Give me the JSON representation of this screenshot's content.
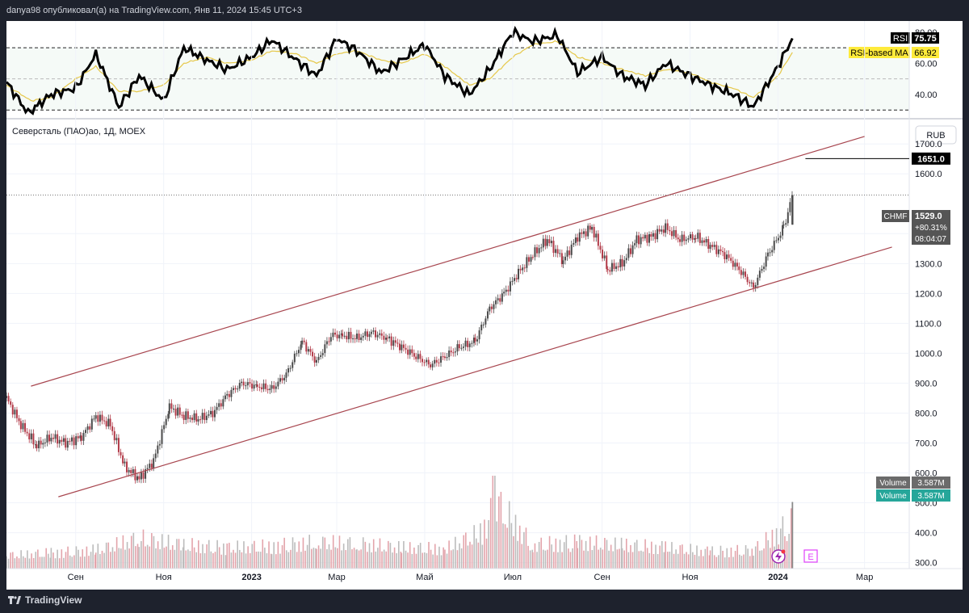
{
  "header": {
    "caption": "danya98 опубликовал(а) на TradingView.com, Янв 11, 2024 15:45 UTC+3"
  },
  "footer": {
    "brand": "TradingView"
  },
  "main_pane": {
    "title": "Северсталь (ПАО)ао, 1Д, MOEX",
    "currency": "RUB",
    "price_badge": {
      "symbol": "CHMF",
      "price": "1529.0",
      "change": "+80.31%",
      "countdown": "08:04:07"
    },
    "target_badge": "1651.0",
    "volume_badge_1": {
      "label": "Volume",
      "value": "3.587M"
    },
    "volume_badge_2": {
      "label": "Volume",
      "value": "3.587M"
    },
    "e_marker": "E"
  },
  "rsi_pane": {
    "rsi_label": "RSI",
    "rsi_value": "75.75",
    "ma_label": "RSI-based MA",
    "ma_value": "66.92"
  },
  "colors": {
    "up": "#4a4a4a",
    "down": "#b23a48",
    "channel": "#a8464f",
    "rsi": "#000000",
    "rsi_ma": "#e6c84a",
    "ma_badge": "#ffeb3b"
  },
  "chart_data": [
    {
      "type": "line",
      "name": "RSI pane",
      "yticks": [
        "80.00",
        "60.00",
        "40.00"
      ],
      "ylim": [
        26,
        83
      ],
      "levels": [
        70,
        50,
        30
      ],
      "series": [
        {
          "name": "RSI",
          "x": [
            "2022-07-15",
            "2022-07-30",
            "2022-08-15",
            "2022-09-01",
            "2022-09-15",
            "2022-10-01",
            "2022-10-15",
            "2022-11-01",
            "2022-11-15",
            "2022-12-01",
            "2022-12-15",
            "2023-01-01",
            "2023-01-15",
            "2023-02-01",
            "2023-02-15",
            "2023-03-01",
            "2023-03-15",
            "2023-04-01",
            "2023-04-15",
            "2023-05-01",
            "2023-05-15",
            "2023-06-01",
            "2023-06-15",
            "2023-07-01",
            "2023-07-15",
            "2023-08-01",
            "2023-08-15",
            "2023-09-01",
            "2023-09-15",
            "2023-10-01",
            "2023-10-15",
            "2023-11-01",
            "2023-11-15",
            "2023-12-01",
            "2023-12-15",
            "2024-01-01",
            "2024-01-11"
          ],
          "values": [
            48,
            28,
            40,
            44,
            66,
            32,
            52,
            36,
            70,
            62,
            56,
            64,
            75,
            62,
            52,
            76,
            68,
            54,
            62,
            72,
            52,
            40,
            56,
            80,
            74,
            78,
            54,
            64,
            52,
            46,
            60,
            52,
            46,
            40,
            32,
            58,
            76
          ]
        },
        {
          "name": "RSI-based MA",
          "x": [
            "2022-07-15",
            "2022-08-01",
            "2022-08-15",
            "2022-09-01",
            "2022-09-15",
            "2022-10-01",
            "2022-10-15",
            "2022-11-01",
            "2022-11-15",
            "2022-12-01",
            "2022-12-15",
            "2023-01-01",
            "2023-01-15",
            "2023-02-01",
            "2023-02-15",
            "2023-03-01",
            "2023-03-15",
            "2023-04-01",
            "2023-04-15",
            "2023-05-01",
            "2023-05-15",
            "2023-06-01",
            "2023-06-15",
            "2023-07-01",
            "2023-07-15",
            "2023-08-01",
            "2023-08-15",
            "2023-09-01",
            "2023-09-15",
            "2023-10-01",
            "2023-10-15",
            "2023-11-01",
            "2023-11-15",
            "2023-12-01",
            "2023-12-15",
            "2024-01-01",
            "2024-01-11"
          ],
          "values": [
            46,
            36,
            38,
            50,
            58,
            42,
            42,
            46,
            60,
            64,
            60,
            62,
            68,
            66,
            60,
            66,
            68,
            62,
            60,
            66,
            58,
            46,
            50,
            64,
            72,
            74,
            64,
            60,
            56,
            52,
            56,
            54,
            48,
            44,
            38,
            52,
            67
          ]
        }
      ]
    },
    {
      "type": "candlestick",
      "name": "price pane",
      "yticks": [
        "1700.0",
        "1600.0",
        "1400.0",
        "1300.0",
        "1200.0",
        "1100.0",
        "1000.0",
        "900.0",
        "800.0",
        "700.0",
        "600.0",
        "500.0",
        "400.0",
        "300.0"
      ],
      "ylim": [
        280,
        1760
      ],
      "xticks": [
        "Сен",
        "Ноя",
        "2023",
        "Мар",
        "Май",
        "Июл",
        "Сен",
        "Ноя",
        "2024",
        "Мар"
      ],
      "xtick_dates": [
        "2022-09-01",
        "2022-11-01",
        "2023-01-01",
        "2023-03-01",
        "2023-05-01",
        "2023-07-01",
        "2023-09-01",
        "2023-11-01",
        "2024-01-01",
        "2024-03-01"
      ],
      "xlim": [
        "2022-07-15",
        "2024-04-01"
      ],
      "series": [
        {
          "name": "close",
          "x": [
            "2022-07-15",
            "2022-07-25",
            "2022-08-05",
            "2022-08-15",
            "2022-08-25",
            "2022-09-05",
            "2022-09-15",
            "2022-09-25",
            "2022-10-05",
            "2022-10-15",
            "2022-10-25",
            "2022-11-05",
            "2022-11-15",
            "2022-11-25",
            "2022-12-05",
            "2022-12-15",
            "2022-12-25",
            "2023-01-05",
            "2023-01-15",
            "2023-01-25",
            "2023-02-05",
            "2023-02-15",
            "2023-02-25",
            "2023-03-05",
            "2023-03-15",
            "2023-03-25",
            "2023-04-05",
            "2023-04-15",
            "2023-04-25",
            "2023-05-05",
            "2023-05-15",
            "2023-05-25",
            "2023-06-05",
            "2023-06-15",
            "2023-06-25",
            "2023-07-05",
            "2023-07-15",
            "2023-07-25",
            "2023-08-05",
            "2023-08-15",
            "2023-08-25",
            "2023-09-05",
            "2023-09-15",
            "2023-09-25",
            "2023-10-05",
            "2023-10-15",
            "2023-10-25",
            "2023-11-05",
            "2023-11-15",
            "2023-11-25",
            "2023-12-05",
            "2023-12-15",
            "2023-12-25",
            "2024-01-05",
            "2024-01-11"
          ],
          "values": [
            850,
            760,
            690,
            720,
            700,
            720,
            790,
            760,
            620,
            580,
            640,
            820,
            790,
            780,
            800,
            860,
            900,
            890,
            880,
            930,
            1040,
            970,
            1060,
            1060,
            1050,
            1070,
            1050,
            1020,
            990,
            960,
            990,
            1020,
            1040,
            1150,
            1200,
            1270,
            1330,
            1380,
            1310,
            1390,
            1420,
            1280,
            1300,
            1380,
            1390,
            1420,
            1380,
            1390,
            1360,
            1330,
            1280,
            1220,
            1330,
            1420,
            1529
          ]
        },
        {
          "name": "Volume",
          "x": [
            "2022-07-15",
            "2022-08-15",
            "2022-09-15",
            "2022-10-15",
            "2022-11-15",
            "2022-12-15",
            "2023-01-15",
            "2023-02-15",
            "2023-03-15",
            "2023-04-15",
            "2023-05-15",
            "2023-06-10",
            "2023-06-20",
            "2023-07-15",
            "2023-08-15",
            "2023-09-15",
            "2023-10-15",
            "2023-11-15",
            "2023-12-15",
            "2024-01-11"
          ],
          "values": [
            1.0,
            1.2,
            1.4,
            2.3,
            1.8,
            1.6,
            1.7,
            2.0,
            1.9,
            1.6,
            1.5,
            2.8,
            5.0,
            1.8,
            2.0,
            1.8,
            1.6,
            1.3,
            1.4,
            3.587
          ]
        }
      ],
      "channel": {
        "upper": [
          [
            "2022-08-01",
            890
          ],
          [
            "2024-03-01",
            1725
          ]
        ],
        "lower": [
          [
            "2022-08-20",
            520
          ],
          [
            "2024-03-20",
            1355
          ]
        ]
      },
      "target_line": 1651.0,
      "last_price_line": 1529.0
    }
  ]
}
